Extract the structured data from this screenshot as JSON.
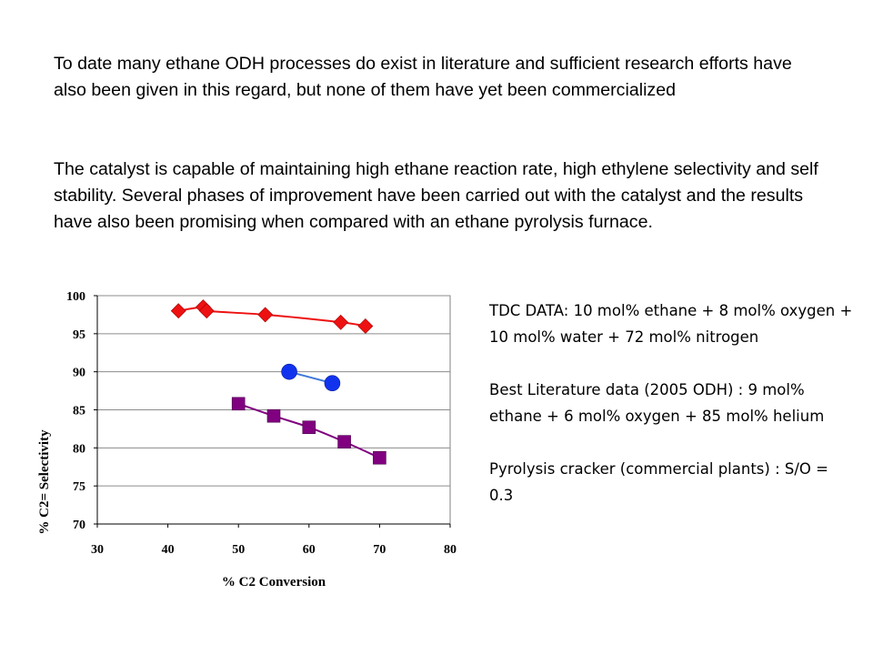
{
  "paragraphs": [
    "To date many ethane ODH processes do exist in literature and sufficient research efforts have also been given in this regard, but none of them have yet been commercialized",
    "The catalyst is capable of maintaining high ethane reaction rate, high ethylene selectivity and self stability. Several phases of improvement have been carried out with the catalyst and the results have also been promising when compared with an ethane pyrolysis furnace."
  ],
  "notes": [
    "TDC DATA: 10 mol% ethane + 8 mol% oxygen + 10 mol% water + 72 mol% nitrogen",
    "Best Literature data (2005 ODH) : 9 mol% ethane + 6 mol% oxygen + 85 mol%  helium",
    "Pyrolysis cracker (commercial plants) : S/O = 0.3"
  ],
  "chart_data": {
    "type": "scatter",
    "xlabel": "% C2 Conversion",
    "ylabel": "% C2= Selectivity",
    "xlim": [
      30,
      80
    ],
    "ylim": [
      70,
      100
    ],
    "xticks": [
      "30",
      "40",
      "50",
      "60",
      "70",
      "80"
    ],
    "yticks": [
      "70",
      "75",
      "80",
      "85",
      "90",
      "95",
      "100"
    ],
    "grid": "horizontal",
    "legend": "none",
    "series": [
      {
        "marker": "diamond",
        "color": "#ee1111",
        "line_color": "#ee1111",
        "points": [
          [
            41.5,
            98.0
          ],
          [
            45.0,
            98.5
          ],
          [
            45.5,
            98.0
          ],
          [
            53.8,
            97.5
          ],
          [
            64.5,
            96.5
          ],
          [
            68.0,
            96.0
          ]
        ]
      },
      {
        "marker": "circle",
        "color": "#1133ee",
        "line_color": "#3f77d8",
        "points": [
          [
            57.2,
            90.0
          ],
          [
            63.3,
            88.5
          ]
        ]
      },
      {
        "marker": "square",
        "color": "#800080",
        "line_color": "#800080",
        "points": [
          [
            50.0,
            85.8
          ],
          [
            55.0,
            84.2
          ],
          [
            60.0,
            82.7
          ],
          [
            65.0,
            80.8
          ],
          [
            70.0,
            78.7
          ]
        ]
      }
    ]
  }
}
